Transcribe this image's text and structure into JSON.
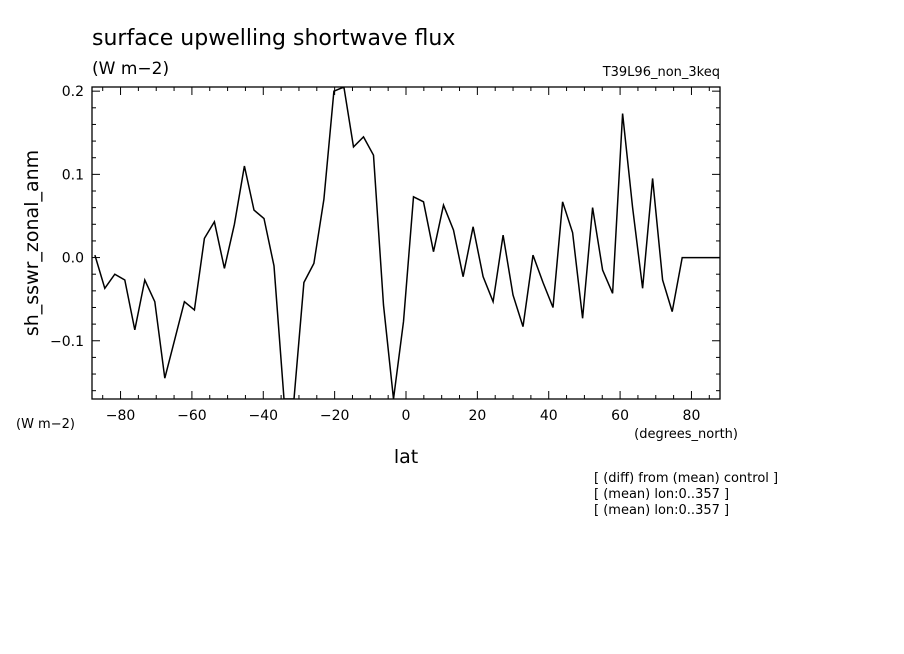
{
  "title": "surface upwelling shortwave flux",
  "units": "(W m−2)",
  "run_label": "T39L96_non_3keq",
  "y_units": "(W m−2)",
  "x_units": "(degrees_north)",
  "notes": [
    "[ (diff) from (mean) control ]",
    "[ (mean) lon:0..357 ]",
    "[ (mean) lon:0..357 ]"
  ],
  "chart_data": {
    "type": "line",
    "title": "surface upwelling shortwave flux",
    "xlabel": "lat",
    "ylabel": "sh_sswr_zonal_anm",
    "xlim": [
      -88,
      88
    ],
    "ylim": [
      -0.17,
      0.205
    ],
    "xticks": [
      -80,
      -60,
      -40,
      -20,
      0,
      20,
      40,
      60,
      80
    ],
    "xtick_labels": [
      "−80",
      "−60",
      "−40",
      "−20",
      "0",
      "20",
      "40",
      "60",
      "80"
    ],
    "yticks": [
      -0.1,
      0.0,
      0.1,
      0.2
    ],
    "ytick_labels": [
      "−0.1",
      "0.0",
      "0.1",
      "0.2"
    ],
    "grid": false,
    "series": [
      {
        "x": [
          -87.2,
          -84.4,
          -81.6,
          -78.8,
          -76.0,
          -73.2,
          -70.4,
          -67.6,
          -64.9,
          -62.1,
          -59.3,
          -56.5,
          -53.7,
          -50.9,
          -48.1,
          -45.3,
          -42.6,
          -39.8,
          -37.0,
          -34.2,
          -31.4,
          -28.6,
          -25.8,
          -23.0,
          -20.2,
          -17.4,
          -14.7,
          -11.9,
          -9.1,
          -6.3,
          -3.5,
          -0.7,
          2.1,
          4.9,
          7.7,
          10.5,
          13.3,
          16.0,
          18.8,
          21.6,
          24.4,
          27.2,
          30.0,
          32.8,
          35.6,
          38.4,
          41.2,
          43.9,
          46.7,
          49.5,
          52.3,
          55.1,
          57.9,
          60.7,
          63.5,
          66.3,
          69.1,
          71.9,
          74.6,
          77.4,
          80.2,
          83.0,
          85.8,
          88.0
        ],
        "values": [
          0.003,
          -0.037,
          -0.02,
          -0.027,
          -0.087,
          -0.027,
          -0.053,
          -0.145,
          -0.1,
          -0.053,
          -0.063,
          0.023,
          0.043,
          -0.013,
          0.04,
          0.11,
          0.057,
          0.047,
          -0.01,
          -0.17,
          -0.17,
          -0.03,
          -0.007,
          0.07,
          0.2,
          0.205,
          0.133,
          0.145,
          0.123,
          -0.057,
          -0.17,
          -0.077,
          0.073,
          0.067,
          0.007,
          0.063,
          0.033,
          -0.023,
          0.037,
          -0.023,
          -0.053,
          0.027,
          -0.045,
          -0.083,
          0.003,
          -0.03,
          -0.06,
          0.067,
          0.03,
          -0.073,
          0.06,
          -0.015,
          -0.043,
          0.173,
          0.06,
          -0.037,
          0.095,
          -0.027,
          -0.065,
          0.0,
          0.0,
          0.0,
          0.0,
          0.0
        ]
      }
    ]
  }
}
